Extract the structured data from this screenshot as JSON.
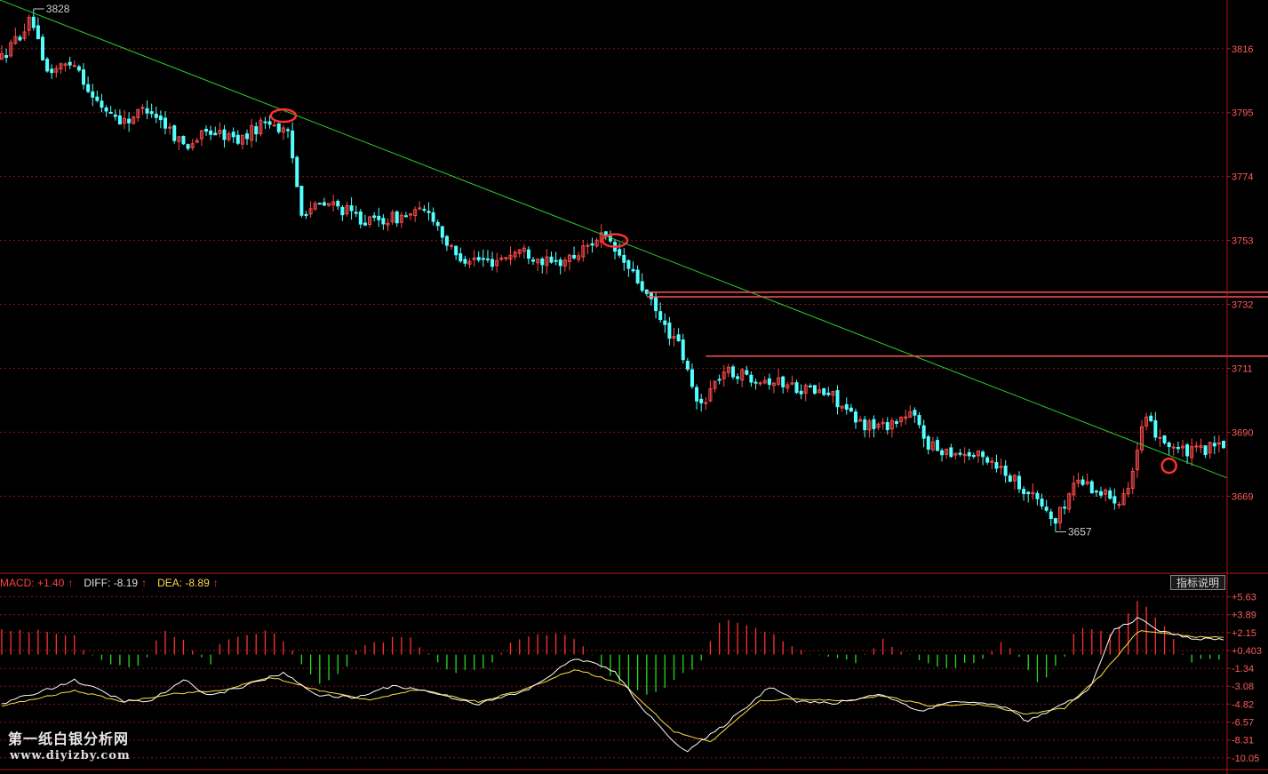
{
  "chart_data": [
    {
      "type": "candlestick",
      "title": "",
      "xlabel": "",
      "ylabel": "",
      "ylim": [
        3644,
        3832
      ],
      "y_ticks": [
        3816,
        3795,
        3774,
        3753,
        3732,
        3711,
        3690,
        3669
      ],
      "annotations": {
        "high_label": "3828",
        "low_label": "3657"
      },
      "trendline": {
        "color": "#2ecc2e",
        "from": [
          0,
          3832
        ],
        "to": [
          1,
          3675
        ]
      },
      "horizontal_lines": [
        {
          "value": 3736,
          "color": "#ff5050"
        },
        {
          "value": 3734.5,
          "color": "#ff5050"
        },
        {
          "value": 3715,
          "color": "#ff5050"
        }
      ],
      "highlights": [
        {
          "type": "ellipse",
          "index_frac": 0.229,
          "value": 3794,
          "color": "#ff3030"
        },
        {
          "type": "ellipse",
          "index_frac": 0.502,
          "value": 3753,
          "color": "#ff3030"
        },
        {
          "type": "circle",
          "index_frac": 0.957,
          "value": 3679,
          "color": "#ff3030"
        }
      ],
      "price_path": [
        [
          0.0,
          3813
        ],
        [
          0.025,
          3826
        ],
        [
          0.035,
          3808
        ],
        [
          0.06,
          3812
        ],
        [
          0.075,
          3799
        ],
        [
          0.1,
          3792
        ],
        [
          0.12,
          3797
        ],
        [
          0.15,
          3784
        ],
        [
          0.17,
          3789
        ],
        [
          0.195,
          3786
        ],
        [
          0.218,
          3793
        ],
        [
          0.235,
          3787
        ],
        [
          0.245,
          3763
        ],
        [
          0.27,
          3765
        ],
        [
          0.3,
          3759
        ],
        [
          0.33,
          3761
        ],
        [
          0.35,
          3763
        ],
        [
          0.37,
          3748
        ],
        [
          0.4,
          3746
        ],
        [
          0.425,
          3750
        ],
        [
          0.45,
          3745
        ],
        [
          0.47,
          3748
        ],
        [
          0.49,
          3755
        ],
        [
          0.505,
          3748
        ],
        [
          0.525,
          3737
        ],
        [
          0.54,
          3726
        ],
        [
          0.555,
          3718
        ],
        [
          0.57,
          3698
        ],
        [
          0.59,
          3710
        ],
        [
          0.62,
          3708
        ],
        [
          0.65,
          3705
        ],
        [
          0.68,
          3702
        ],
        [
          0.7,
          3693
        ],
        [
          0.72,
          3692
        ],
        [
          0.745,
          3696
        ],
        [
          0.76,
          3685
        ],
        [
          0.79,
          3683
        ],
        [
          0.81,
          3681
        ],
        [
          0.83,
          3674
        ],
        [
          0.85,
          3667
        ],
        [
          0.862,
          3660
        ],
        [
          0.88,
          3675
        ],
        [
          0.9,
          3670
        ],
        [
          0.915,
          3668
        ],
        [
          0.925,
          3676
        ],
        [
          0.935,
          3694
        ],
        [
          0.955,
          3686
        ],
        [
          0.97,
          3683
        ],
        [
          0.99,
          3685
        ]
      ]
    },
    {
      "type": "macd",
      "title": "",
      "ylim": [
        -10.5,
        6.2
      ],
      "y_ticks": [
        "+5.63",
        "+3.89",
        "+2.15",
        "+0.403",
        "-1.34",
        "-3.08",
        "-4.82",
        "-6.57",
        "-8.31",
        "-10.05"
      ],
      "y_tick_values": [
        5.63,
        3.89,
        2.15,
        0.403,
        -1.34,
        -3.08,
        -4.82,
        -6.57,
        -8.31,
        -10.05
      ],
      "hist_path": [
        [
          0.0,
          2.5
        ],
        [
          0.06,
          2.0
        ],
        [
          0.07,
          0.0
        ],
        [
          0.09,
          -1.0
        ],
        [
          0.11,
          -1.5
        ],
        [
          0.12,
          0.0
        ],
        [
          0.13,
          2.4
        ],
        [
          0.15,
          1.5
        ],
        [
          0.16,
          0.0
        ],
        [
          0.17,
          -1.0
        ],
        [
          0.18,
          1.5
        ],
        [
          0.22,
          2.3
        ],
        [
          0.24,
          0.0
        ],
        [
          0.26,
          -3.0
        ],
        [
          0.28,
          -1.5
        ],
        [
          0.29,
          0.5
        ],
        [
          0.33,
          2.0
        ],
        [
          0.35,
          0.0
        ],
        [
          0.37,
          -2.0
        ],
        [
          0.4,
          -1.0
        ],
        [
          0.42,
          1.5
        ],
        [
          0.46,
          2.2
        ],
        [
          0.48,
          0.3
        ],
        [
          0.5,
          -2.5
        ],
        [
          0.53,
          -4.0
        ],
        [
          0.57,
          -1.0
        ],
        [
          0.59,
          3.5
        ],
        [
          0.63,
          2.0
        ],
        [
          0.66,
          0.0
        ],
        [
          0.7,
          -0.8
        ],
        [
          0.72,
          1.5
        ],
        [
          0.74,
          0.0
        ],
        [
          0.77,
          -1.5
        ],
        [
          0.8,
          -0.6
        ],
        [
          0.82,
          1.5
        ],
        [
          0.84,
          -1.5
        ],
        [
          0.85,
          -3.0
        ],
        [
          0.87,
          0.0
        ],
        [
          0.88,
          2.5
        ],
        [
          0.91,
          2.0
        ],
        [
          0.93,
          5.5
        ],
        [
          0.95,
          3.0
        ],
        [
          0.97,
          -0.6
        ],
        [
          1.0,
          -0.5
        ]
      ],
      "diff_path": [
        [
          0.0,
          -4.8
        ],
        [
          0.06,
          -2.5
        ],
        [
          0.1,
          -4.5
        ],
        [
          0.12,
          -4.6
        ],
        [
          0.15,
          -2.5
        ],
        [
          0.17,
          -4.0
        ],
        [
          0.2,
          -3.0
        ],
        [
          0.23,
          -1.8
        ],
        [
          0.26,
          -4.0
        ],
        [
          0.29,
          -4.2
        ],
        [
          0.32,
          -3.0
        ],
        [
          0.35,
          -3.6
        ],
        [
          0.39,
          -4.8
        ],
        [
          0.43,
          -3.5
        ],
        [
          0.47,
          -0.3
        ],
        [
          0.5,
          -1.5
        ],
        [
          0.53,
          -6.0
        ],
        [
          0.56,
          -9.5
        ],
        [
          0.59,
          -7.0
        ],
        [
          0.63,
          -3.0
        ],
        [
          0.65,
          -4.5
        ],
        [
          0.68,
          -4.8
        ],
        [
          0.72,
          -3.8
        ],
        [
          0.75,
          -5.5
        ],
        [
          0.78,
          -4.5
        ],
        [
          0.82,
          -5.0
        ],
        [
          0.84,
          -6.5
        ],
        [
          0.87,
          -4.8
        ],
        [
          0.89,
          -3.5
        ],
        [
          0.91,
          2.5
        ],
        [
          0.93,
          3.5
        ],
        [
          0.95,
          2.2
        ],
        [
          0.98,
          1.5
        ]
      ],
      "dea_path": [
        [
          0.0,
          -5.0
        ],
        [
          0.06,
          -3.5
        ],
        [
          0.1,
          -4.6
        ],
        [
          0.14,
          -3.8
        ],
        [
          0.18,
          -3.5
        ],
        [
          0.22,
          -2.2
        ],
        [
          0.26,
          -3.5
        ],
        [
          0.3,
          -4.4
        ],
        [
          0.34,
          -3.4
        ],
        [
          0.39,
          -4.6
        ],
        [
          0.43,
          -3.3
        ],
        [
          0.47,
          -1.4
        ],
        [
          0.51,
          -3.0
        ],
        [
          0.55,
          -7.5
        ],
        [
          0.58,
          -8.5
        ],
        [
          0.62,
          -4.5
        ],
        [
          0.65,
          -4.3
        ],
        [
          0.69,
          -4.5
        ],
        [
          0.72,
          -4.0
        ],
        [
          0.76,
          -5.0
        ],
        [
          0.8,
          -4.8
        ],
        [
          0.84,
          -5.8
        ],
        [
          0.87,
          -5.2
        ],
        [
          0.9,
          -2.0
        ],
        [
          0.93,
          2.3
        ],
        [
          0.96,
          2.0
        ],
        [
          0.98,
          1.7
        ]
      ]
    }
  ],
  "macd_header": {
    "macd_label": "MACD: +1.40",
    "diff_label": "DIFF: -8.19",
    "dea_label": "DEA: -8.89",
    "arrow": "↑"
  },
  "buttons": {
    "indicator_help": "指标说明"
  },
  "watermark": {
    "name": "第一纸白银分析网",
    "url": "www.diyizby.com"
  },
  "colors": {
    "up": "#ff4a4a",
    "down": "#54ffff",
    "grid": "#8a1515",
    "axis": "#b01515",
    "diff": "#ffffff",
    "dea": "#ffe040",
    "hist_pos": "#ff3030",
    "hist_neg": "#22dd22",
    "trend": "#2ecc2e"
  }
}
